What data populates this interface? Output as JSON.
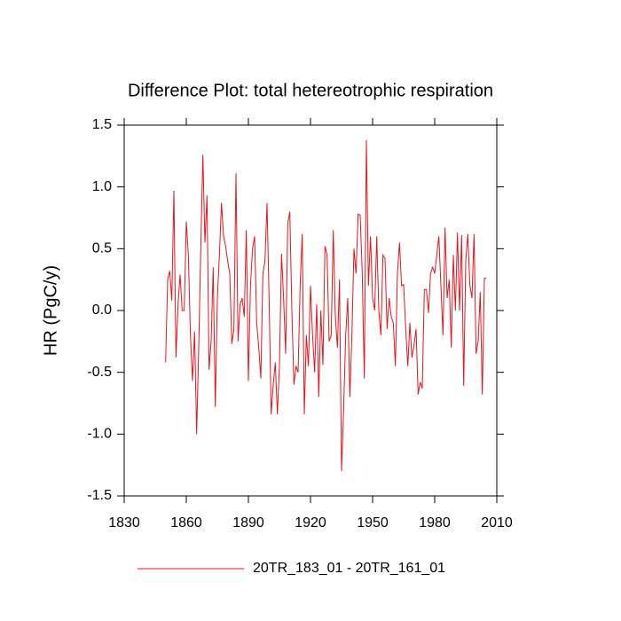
{
  "chart_data": {
    "type": "line",
    "title": "Difference Plot: total hetereotrophic respiration",
    "y_label": "HR  (PgC/y)",
    "x": [
      1850,
      1851,
      1852,
      1853,
      1854,
      1855,
      1856,
      1857,
      1858,
      1859,
      1860,
      1861,
      1862,
      1863,
      1864,
      1865,
      1866,
      1867,
      1868,
      1869,
      1870,
      1871,
      1872,
      1873,
      1874,
      1875,
      1876,
      1877,
      1878,
      1879,
      1880,
      1881,
      1882,
      1883,
      1884,
      1885,
      1886,
      1887,
      1888,
      1889,
      1890,
      1891,
      1892,
      1893,
      1894,
      1895,
      1896,
      1897,
      1898,
      1899,
      1900,
      1901,
      1902,
      1903,
      1904,
      1905,
      1906,
      1907,
      1908,
      1909,
      1910,
      1911,
      1912,
      1913,
      1914,
      1915,
      1916,
      1917,
      1918,
      1919,
      1920,
      1921,
      1922,
      1923,
      1924,
      1925,
      1926,
      1927,
      1928,
      1929,
      1930,
      1931,
      1932,
      1933,
      1934,
      1935,
      1936,
      1937,
      1938,
      1939,
      1940,
      1941,
      1942,
      1943,
      1944,
      1945,
      1946,
      1947,
      1948,
      1949,
      1950,
      1951,
      1952,
      1953,
      1954,
      1955,
      1956,
      1957,
      1958,
      1959,
      1960,
      1961,
      1962,
      1963,
      1964,
      1965,
      1966,
      1967,
      1968,
      1969,
      1970,
      1971,
      1972,
      1973,
      1974,
      1975,
      1976,
      1977,
      1978,
      1979,
      1980,
      1981,
      1982,
      1983,
      1984,
      1985,
      1986,
      1987,
      1988,
      1989,
      1990,
      1991,
      1992,
      1993,
      1994,
      1995,
      1996,
      1997,
      1998,
      1999,
      2000,
      2001,
      2002,
      2003,
      2004,
      2005
    ],
    "series": [
      {
        "name": "20TR_183_01 - 20TR_161_01",
        "color": "#e8141c",
        "values": [
          -0.42,
          0.25,
          0.32,
          0.08,
          0.97,
          -0.38,
          0.05,
          0.29,
          0.0,
          0.0,
          0.72,
          0.45,
          -0.2,
          -0.57,
          -0.17,
          -1.0,
          -0.3,
          0.5,
          1.26,
          0.55,
          0.93,
          -0.48,
          -0.25,
          0.35,
          -0.78,
          0.1,
          0.45,
          0.87,
          0.6,
          0.52,
          0.4,
          0.3,
          -0.27,
          -0.15,
          1.11,
          -0.25,
          0.05,
          0.1,
          -0.05,
          0.65,
          -0.57,
          0.2,
          0.5,
          0.6,
          -0.1,
          -0.3,
          -0.55,
          0.3,
          0.4,
          0.87,
          0.1,
          -0.84,
          -0.6,
          -0.42,
          -0.84,
          -0.45,
          0.46,
          0.1,
          -0.35,
          0.7,
          0.8,
          0.0,
          -0.6,
          -0.45,
          -0.5,
          0.2,
          0.62,
          -0.84,
          -0.2,
          -0.45,
          0.2,
          -0.2,
          -0.5,
          0.05,
          -0.7,
          0.0,
          -0.44,
          0.52,
          0.45,
          -0.25,
          -0.2,
          0.65,
          -0.05,
          -0.3,
          0.25,
          -1.3,
          -0.8,
          -0.2,
          0.1,
          -0.7,
          -0.2,
          0.5,
          0.3,
          0.78,
          0.77,
          0.3,
          -0.55,
          1.38,
          0.2,
          0.6,
          0.1,
          0.0,
          0.6,
          0.0,
          -0.2,
          0.45,
          0.42,
          -0.15,
          0.1,
          -0.05,
          -0.1,
          -0.45,
          0.3,
          0.55,
          0.2,
          0.21,
          -0.15,
          -0.45,
          -0.1,
          -0.38,
          -0.28,
          -0.15,
          -0.68,
          -0.58,
          -0.63,
          0.17,
          0.17,
          -0.02,
          0.3,
          0.35,
          0.3,
          0.45,
          0.6,
          0.2,
          -0.2,
          0.67,
          0.1,
          0.25,
          -0.3,
          0.45,
          0.0,
          0.63,
          0.0,
          0.61,
          -0.61,
          0.4,
          0.62,
          0.2,
          0.1,
          0.62,
          -0.35,
          -0.25,
          0.15,
          -0.68,
          0.26,
          0.26
        ]
      }
    ],
    "xlim": [
      1830,
      2010
    ],
    "xticks": [
      1830,
      1860,
      1890,
      1920,
      1950,
      1980,
      2010
    ],
    "ylim": [
      -1.5,
      1.5
    ],
    "yticks": [
      -1.5,
      {
        "value": -1.0,
        "label": "-1.0"
      },
      -0.5,
      {
        "value": 0.0,
        "label": "0.0"
      },
      0.5,
      {
        "value": 1.0,
        "label": "1.0"
      },
      1.5
    ]
  }
}
